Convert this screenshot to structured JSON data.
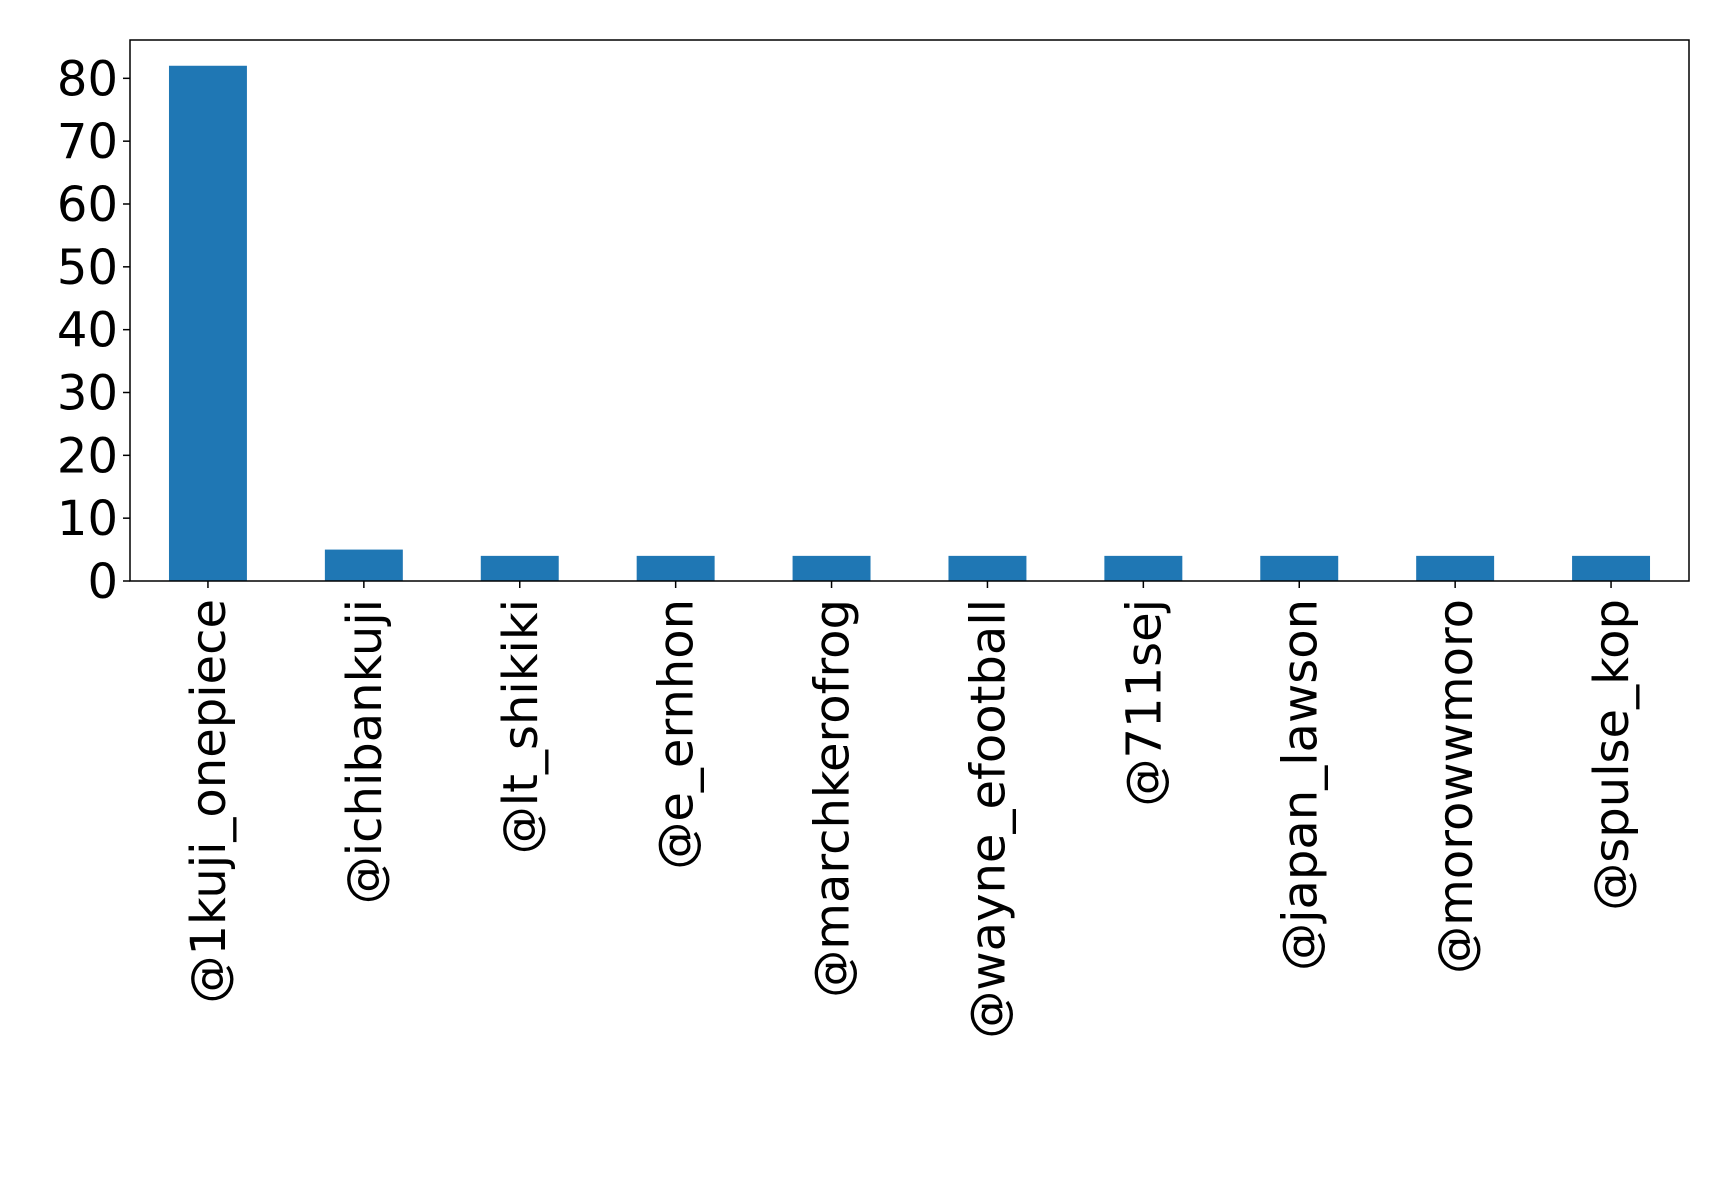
{
  "chart_data": {
    "type": "bar",
    "title": "",
    "xlabel": "",
    "ylabel": "",
    "categories": [
      "@1kuji_onepiece",
      "@ichibankuji",
      "@lt_shikiki",
      "@e_ernhon",
      "@marchkerofrog",
      "@wayne_efootball",
      "@711sej",
      "@japan_lawson",
      "@morowwmoro",
      "@spulse_kop"
    ],
    "values": [
      82,
      5,
      4,
      4,
      4,
      4,
      4,
      4,
      4,
      4
    ],
    "ylim": [
      0,
      86.1
    ],
    "yticks": [
      0,
      10,
      20,
      30,
      40,
      50,
      60,
      70,
      80
    ],
    "xtick_rotation": 90,
    "grid": false,
    "bar_color": "#1f77b4"
  }
}
